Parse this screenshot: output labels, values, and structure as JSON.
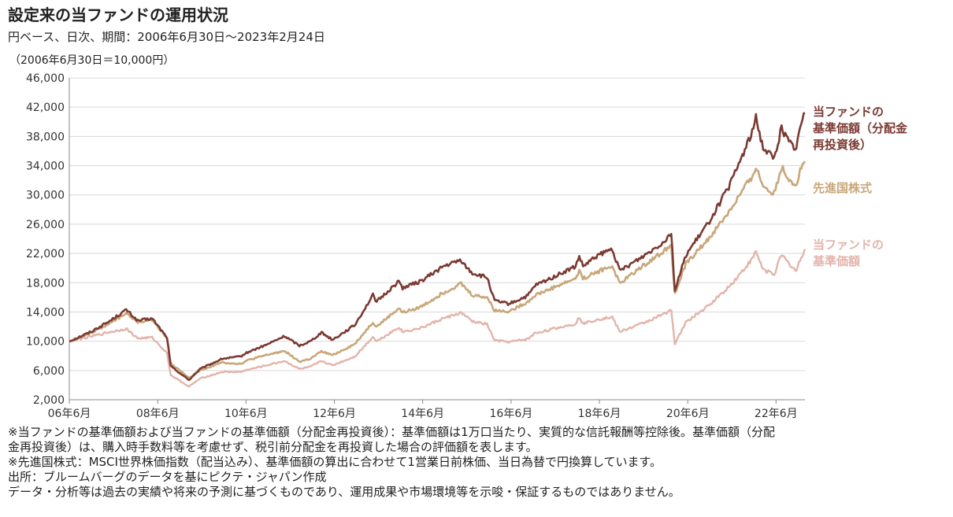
{
  "title": "設定来の当ファンドの運用状況",
  "subtitle": "円ベース、日次、期間：2006年6月30日～2023年2月24日",
  "base_note": "（2006年6月30日＝10,000円）",
  "colors": {
    "fund_reinvested": "#7b3a32",
    "msci": "#c8a77a",
    "fund_nav": "#e2b4aa",
    "grid": "#d9d9d9",
    "axis": "#888888"
  },
  "chart_data": {
    "type": "line",
    "title": "設定来の当ファンドの運用状況",
    "xlabel": "",
    "ylabel": "",
    "x_ticks": [
      "06年6月",
      "08年6月",
      "10年6月",
      "12年6月",
      "14年6月",
      "16年6月",
      "18年6月",
      "20年6月",
      "22年6月"
    ],
    "y_ticks": [
      2000,
      6000,
      10000,
      14000,
      18000,
      22000,
      26000,
      30000,
      34000,
      38000,
      42000,
      46000
    ],
    "y_tick_labels": [
      "2,000",
      "6,000",
      "10,000",
      "14,000",
      "18,000",
      "22,000",
      "26,000",
      "30,000",
      "34,000",
      "38,000",
      "42,000",
      "46,000"
    ],
    "ylim": [
      2000,
      46000
    ],
    "xlim": [
      "2006-06-30",
      "2023-02-24"
    ],
    "grid": true,
    "legend_placement": "right",
    "series": [
      {
        "name": "当ファンドの基準価額（分配金再投資後）",
        "color": "#7b3a32",
        "points": [
          [
            "2006-06-30",
            10000
          ],
          [
            "2006-12",
            11200
          ],
          [
            "2007-05",
            12600
          ],
          [
            "2007-10",
            14300
          ],
          [
            "2008-01",
            12800
          ],
          [
            "2008-05",
            13100
          ],
          [
            "2008-09",
            10500
          ],
          [
            "2008-10",
            6600
          ],
          [
            "2009-03",
            4700
          ],
          [
            "2009-06",
            6200
          ],
          [
            "2009-12",
            7600
          ],
          [
            "2010-05",
            7900
          ],
          [
            "2010-07",
            8500
          ],
          [
            "2010-12",
            9500
          ],
          [
            "2011-05",
            10700
          ],
          [
            "2011-09",
            9400
          ],
          [
            "2011-12",
            10000
          ],
          [
            "2012-03",
            11200
          ],
          [
            "2012-06",
            10200
          ],
          [
            "2012-12",
            12200
          ],
          [
            "2013-05",
            16300
          ],
          [
            "2013-06",
            15400
          ],
          [
            "2013-12",
            18200
          ],
          [
            "2014-01",
            17300
          ],
          [
            "2014-06",
            18200
          ],
          [
            "2014-12",
            20200
          ],
          [
            "2015-05",
            21100
          ],
          [
            "2015-06",
            20300
          ],
          [
            "2015-08",
            19300
          ],
          [
            "2015-12",
            18700
          ],
          [
            "2016-02",
            15500
          ],
          [
            "2016-06",
            15100
          ],
          [
            "2016-11",
            16200
          ],
          [
            "2017-01",
            17600
          ],
          [
            "2017-12",
            20200
          ],
          [
            "2018-01",
            21600
          ],
          [
            "2018-02",
            20200
          ],
          [
            "2018-06",
            21700
          ],
          [
            "2018-10",
            22600
          ],
          [
            "2018-12",
            19600
          ],
          [
            "2019-06",
            21500
          ],
          [
            "2019-12",
            23600
          ],
          [
            "2020-02",
            24900
          ],
          [
            "2020-03",
            16900
          ],
          [
            "2020-06",
            21800
          ],
          [
            "2020-12",
            26100
          ],
          [
            "2021-06",
            31400
          ],
          [
            "2021-12",
            38600
          ],
          [
            "2022-01",
            40500
          ],
          [
            "2022-03",
            36500
          ],
          [
            "2022-06",
            35000
          ],
          [
            "2022-08",
            39200
          ],
          [
            "2022-10",
            37200
          ],
          [
            "2022-12",
            36300
          ],
          [
            "2023-01",
            39300
          ],
          [
            "2023-02-24",
            41200
          ]
        ]
      },
      {
        "name": "先進国株式",
        "color": "#c8a77a",
        "points": [
          [
            "2006-06-30",
            10000
          ],
          [
            "2006-12",
            11100
          ],
          [
            "2007-05",
            12300
          ],
          [
            "2007-10",
            13800
          ],
          [
            "2008-01",
            12600
          ],
          [
            "2008-05",
            12900
          ],
          [
            "2008-09",
            10500
          ],
          [
            "2008-10",
            7000
          ],
          [
            "2009-03",
            5000
          ],
          [
            "2009-06",
            6000
          ],
          [
            "2009-12",
            7100
          ],
          [
            "2010-05",
            6900
          ],
          [
            "2010-07",
            7400
          ],
          [
            "2010-12",
            8100
          ],
          [
            "2011-05",
            8700
          ],
          [
            "2011-09",
            7200
          ],
          [
            "2011-12",
            7600
          ],
          [
            "2012-03",
            8600
          ],
          [
            "2012-06",
            8100
          ],
          [
            "2012-12",
            9600
          ],
          [
            "2013-05",
            12600
          ],
          [
            "2013-06",
            12000
          ],
          [
            "2013-12",
            14500
          ],
          [
            "2014-01",
            13900
          ],
          [
            "2014-06",
            14700
          ],
          [
            "2014-12",
            16600
          ],
          [
            "2015-05",
            17900
          ],
          [
            "2015-06",
            17300
          ],
          [
            "2015-08",
            16300
          ],
          [
            "2015-12",
            16000
          ],
          [
            "2016-02",
            14200
          ],
          [
            "2016-06",
            14100
          ],
          [
            "2016-11",
            15400
          ],
          [
            "2017-01",
            16300
          ],
          [
            "2017-12",
            18600
          ],
          [
            "2018-01",
            19600
          ],
          [
            "2018-02",
            18600
          ],
          [
            "2018-06",
            19500
          ],
          [
            "2018-10",
            20300
          ],
          [
            "2018-12",
            17900
          ],
          [
            "2019-06",
            20200
          ],
          [
            "2019-12",
            22300
          ],
          [
            "2020-02",
            23400
          ],
          [
            "2020-03",
            16400
          ],
          [
            "2020-06",
            20600
          ],
          [
            "2020-12",
            23900
          ],
          [
            "2021-06",
            27900
          ],
          [
            "2021-12",
            32600
          ],
          [
            "2022-01",
            33800
          ],
          [
            "2022-03",
            31200
          ],
          [
            "2022-06",
            30200
          ],
          [
            "2022-08",
            33800
          ],
          [
            "2022-10",
            32200
          ],
          [
            "2022-12",
            31300
          ],
          [
            "2023-01",
            33300
          ],
          [
            "2023-02-24",
            34600
          ]
        ]
      },
      {
        "name": "当ファンドの基準価額",
        "color": "#e2b4aa",
        "points": [
          [
            "2006-06-30",
            10000
          ],
          [
            "2006-12",
            10600
          ],
          [
            "2007-05",
            11200
          ],
          [
            "2007-10",
            11700
          ],
          [
            "2008-01",
            10400
          ],
          [
            "2008-05",
            10500
          ],
          [
            "2008-09",
            8400
          ],
          [
            "2008-10",
            5400
          ],
          [
            "2009-03",
            3800
          ],
          [
            "2009-06",
            4900
          ],
          [
            "2009-12",
            5800
          ],
          [
            "2010-05",
            5800
          ],
          [
            "2010-07",
            6100
          ],
          [
            "2010-12",
            6700
          ],
          [
            "2011-05",
            7300
          ],
          [
            "2011-09",
            6200
          ],
          [
            "2011-12",
            6500
          ],
          [
            "2012-03",
            7300
          ],
          [
            "2012-06",
            6700
          ],
          [
            "2012-12",
            7900
          ],
          [
            "2013-05",
            10600
          ],
          [
            "2013-06",
            10000
          ],
          [
            "2013-12",
            11900
          ],
          [
            "2014-01",
            11300
          ],
          [
            "2014-06",
            11800
          ],
          [
            "2014-12",
            13100
          ],
          [
            "2015-05",
            13900
          ],
          [
            "2015-06",
            13500
          ],
          [
            "2015-08",
            12700
          ],
          [
            "2015-12",
            12300
          ],
          [
            "2016-02",
            10100
          ],
          [
            "2016-06",
            9900
          ],
          [
            "2016-11",
            10300
          ],
          [
            "2017-01",
            11100
          ],
          [
            "2017-12",
            12400
          ],
          [
            "2018-01",
            13300
          ],
          [
            "2018-02",
            12400
          ],
          [
            "2018-06",
            13000
          ],
          [
            "2018-10",
            13300
          ],
          [
            "2018-12",
            11300
          ],
          [
            "2019-06",
            12400
          ],
          [
            "2019-12",
            13700
          ],
          [
            "2020-02",
            14400
          ],
          [
            "2020-03",
            9600
          ],
          [
            "2020-06",
            12600
          ],
          [
            "2020-12",
            14800
          ],
          [
            "2021-06",
            17600
          ],
          [
            "2021-12",
            21200
          ],
          [
            "2022-01",
            22300
          ],
          [
            "2022-03",
            19800
          ],
          [
            "2022-06",
            19200
          ],
          [
            "2022-08",
            21800
          ],
          [
            "2022-10",
            20600
          ],
          [
            "2022-12",
            19600
          ],
          [
            "2023-01",
            21100
          ],
          [
            "2023-02-24",
            22600
          ]
        ]
      }
    ]
  },
  "legend": {
    "fund_reinvested": [
      "当ファンドの",
      "基準価額（分配金",
      "再投資後）"
    ],
    "msci": [
      "先進国株式"
    ],
    "fund_nav": [
      "当ファンドの",
      "基準価額"
    ]
  },
  "footnotes": [
    "※当ファンドの基準価額および当ファンドの基準価額（分配金再投資後）：基準価額は1万口当たり、実質的な信託報酬等控除後。基準価額（分配",
    "金再投資後）は、購入時手数料等を考慮せず、税引前分配金を再投資した場合の評価額を表します。",
    "※先進国株式：MSCI世界株価指数（配当込み）、基準価額の算出に合わせて1営業日前株価、当日為替で円換算しています。",
    "出所：ブルームバーグのデータを基にピクテ・ジャパン作成",
    "データ・分析等は過去の実績や将来の予測に基づくものであり、運用成果や市場環境等を示唆・保証するものではありません。"
  ]
}
